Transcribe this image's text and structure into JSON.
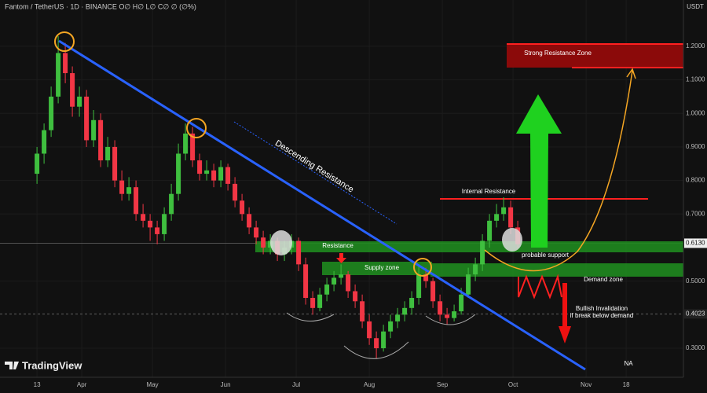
{
  "chart_data": {
    "type": "candlestick",
    "title": "Fantom / TetherUS · 1D · BINANCE  O∅ H∅ L∅ C∅ ∅ (∅%)",
    "currency": "USDT",
    "brand": "TradingView",
    "up_color": "#3fbf3f",
    "down_color": "#f23645",
    "xlim": [
      -15.7,
      274.3
    ],
    "ylim": [
      0.2134,
      1.338
    ],
    "xticks": [
      {
        "value": 0,
        "label": "13"
      },
      {
        "value": 19,
        "label": "Apr"
      },
      {
        "value": 49,
        "label": "May"
      },
      {
        "value": 80,
        "label": "Jun"
      },
      {
        "value": 110,
        "label": "Jul"
      },
      {
        "value": 141,
        "label": "Aug"
      },
      {
        "value": 172,
        "label": "Sep"
      },
      {
        "value": 202,
        "label": "Oct"
      },
      {
        "value": 233,
        "label": "Nov"
      },
      {
        "value": 250,
        "label": "18"
      }
    ],
    "yticks": [
      {
        "value": 1.2,
        "label": "1.2000"
      },
      {
        "value": 1.1,
        "label": "1.1000"
      },
      {
        "value": 1.0,
        "label": "1.0000"
      },
      {
        "value": 0.9,
        "label": "0.9000"
      },
      {
        "value": 0.8,
        "label": "0.8000"
      },
      {
        "value": 0.7,
        "label": "0.7000"
      },
      {
        "value": 0.5,
        "label": "0.5000"
      },
      {
        "value": 0.3,
        "label": "0.3000"
      }
    ],
    "price_labels": [
      {
        "value": 0.613,
        "label": "0.6130"
      },
      {
        "value": 0.4023,
        "label": "0.4023"
      }
    ],
    "candles": [
      [
        0,
        0.82,
        0.9,
        0.79,
        0.88
      ],
      [
        3,
        0.88,
        0.97,
        0.85,
        0.95
      ],
      [
        6,
        0.95,
        1.08,
        0.93,
        1.05
      ],
      [
        9,
        1.05,
        1.23,
        1.03,
        1.18
      ],
      [
        12,
        1.18,
        1.21,
        1.09,
        1.12
      ],
      [
        15,
        1.12,
        1.14,
        0.99,
        1.02
      ],
      [
        18,
        1.02,
        1.08,
        0.99,
        1.05
      ],
      [
        21,
        1.05,
        1.07,
        0.9,
        0.92
      ],
      [
        24,
        0.92,
        1.01,
        0.9,
        0.98
      ],
      [
        27,
        0.98,
        1.0,
        0.84,
        0.86
      ],
      [
        30,
        0.86,
        0.93,
        0.84,
        0.9
      ],
      [
        33,
        0.9,
        0.92,
        0.78,
        0.8
      ],
      [
        36,
        0.8,
        0.83,
        0.74,
        0.76
      ],
      [
        39,
        0.76,
        0.81,
        0.74,
        0.78
      ],
      [
        42,
        0.78,
        0.8,
        0.68,
        0.7
      ],
      [
        45,
        0.7,
        0.73,
        0.66,
        0.68
      ],
      [
        48,
        0.68,
        0.7,
        0.62,
        0.66
      ],
      [
        51,
        0.66,
        0.68,
        0.61,
        0.64
      ],
      [
        54,
        0.64,
        0.72,
        0.62,
        0.7
      ],
      [
        57,
        0.7,
        0.79,
        0.68,
        0.76
      ],
      [
        60,
        0.76,
        0.91,
        0.74,
        0.88
      ],
      [
        63,
        0.88,
        0.97,
        0.86,
        0.94
      ],
      [
        66,
        0.94,
        0.96,
        0.84,
        0.86
      ],
      [
        69,
        0.86,
        0.88,
        0.8,
        0.82
      ],
      [
        72,
        0.82,
        0.86,
        0.8,
        0.83
      ],
      [
        75,
        0.83,
        0.85,
        0.78,
        0.8
      ],
      [
        78,
        0.8,
        0.86,
        0.78,
        0.84
      ],
      [
        81,
        0.84,
        0.85,
        0.77,
        0.79
      ],
      [
        84,
        0.79,
        0.81,
        0.72,
        0.74
      ],
      [
        87,
        0.74,
        0.76,
        0.68,
        0.7
      ],
      [
        90,
        0.7,
        0.72,
        0.64,
        0.66
      ],
      [
        93,
        0.66,
        0.68,
        0.61,
        0.63
      ],
      [
        96,
        0.63,
        0.65,
        0.58,
        0.6
      ],
      [
        99,
        0.6,
        0.64,
        0.58,
        0.62
      ],
      [
        102,
        0.62,
        0.63,
        0.56,
        0.58
      ],
      [
        105,
        0.58,
        0.62,
        0.56,
        0.6
      ],
      [
        108,
        0.6,
        0.64,
        0.58,
        0.62
      ],
      [
        111,
        0.62,
        0.63,
        0.53,
        0.55
      ],
      [
        114,
        0.55,
        0.57,
        0.43,
        0.45
      ],
      [
        117,
        0.45,
        0.47,
        0.4,
        0.42
      ],
      [
        120,
        0.42,
        0.48,
        0.41,
        0.46
      ],
      [
        123,
        0.46,
        0.51,
        0.44,
        0.49
      ],
      [
        126,
        0.49,
        0.53,
        0.47,
        0.51
      ],
      [
        129,
        0.51,
        0.55,
        0.49,
        0.52
      ],
      [
        132,
        0.52,
        0.53,
        0.45,
        0.47
      ],
      [
        135,
        0.47,
        0.49,
        0.42,
        0.44
      ],
      [
        138,
        0.44,
        0.46,
        0.36,
        0.38
      ],
      [
        141,
        0.38,
        0.4,
        0.31,
        0.33
      ],
      [
        144,
        0.33,
        0.35,
        0.27,
        0.3
      ],
      [
        147,
        0.3,
        0.37,
        0.29,
        0.35
      ],
      [
        150,
        0.35,
        0.4,
        0.33,
        0.38
      ],
      [
        153,
        0.38,
        0.42,
        0.36,
        0.4
      ],
      [
        156,
        0.4,
        0.44,
        0.38,
        0.42
      ],
      [
        159,
        0.42,
        0.47,
        0.4,
        0.45
      ],
      [
        162,
        0.45,
        0.55,
        0.43,
        0.52
      ],
      [
        165,
        0.52,
        0.54,
        0.48,
        0.5
      ],
      [
        168,
        0.5,
        0.51,
        0.42,
        0.44
      ],
      [
        171,
        0.44,
        0.46,
        0.38,
        0.4
      ],
      [
        174,
        0.4,
        0.42,
        0.37,
        0.39
      ],
      [
        177,
        0.39,
        0.43,
        0.38,
        0.41
      ],
      [
        180,
        0.41,
        0.48,
        0.4,
        0.46
      ],
      [
        183,
        0.46,
        0.54,
        0.45,
        0.52
      ],
      [
        186,
        0.52,
        0.57,
        0.5,
        0.55
      ],
      [
        189,
        0.55,
        0.64,
        0.53,
        0.62
      ],
      [
        192,
        0.62,
        0.7,
        0.6,
        0.68
      ],
      [
        195,
        0.68,
        0.73,
        0.66,
        0.7
      ],
      [
        198,
        0.7,
        0.75,
        0.68,
        0.72
      ],
      [
        201,
        0.72,
        0.74,
        0.64,
        0.66
      ],
      [
        204,
        0.66,
        0.68,
        0.6,
        0.61
      ]
    ],
    "annotations": {
      "descending_resistance": "Descending Resistance",
      "strong_resistance_zone": "Strong Resistance Zone",
      "internal_resistance": "Internal Resistance",
      "resistance": "Resistance",
      "supply_zone": "Supply zone",
      "probable_support": "probable support",
      "demand_zone": "Demand zone",
      "bullish_invalidation": "Bullish Invalidation",
      "break_below_demand": "if break below demand",
      "na": "NA"
    }
  }
}
